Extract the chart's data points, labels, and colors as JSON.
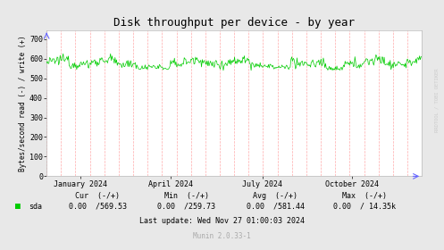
{
  "title": "Disk throughput per device - by year",
  "ylabel": "Bytes/second read (-) / write (+)",
  "background_color": "#E8E8E8",
  "plot_bg_color": "#FFFFFF",
  "line_color": "#00CC00",
  "grid_h_color": "#FFFFFF",
  "grid_v_color": "#FFAAAA",
  "axis_border_color": "#BBBBBB",
  "ylim": [
    0,
    746
  ],
  "yticks": [
    0,
    100,
    200,
    300,
    400,
    500,
    600,
    700
  ],
  "xlabel_months": [
    "January 2024",
    "April 2024",
    "July 2024",
    "October 2024"
  ],
  "legend_label": "sda",
  "legend_color": "#00CC00",
  "footer_cur": "Cur  (-/+)",
  "footer_min": "Min  (-/+)",
  "footer_avg": "Avg  (-/+)",
  "footer_max": "Max  (-/+)",
  "footer_sda_cur": "0.00  /569.53",
  "footer_sda_min": "0.00  /259.73",
  "footer_sda_avg": "0.00  /581.44",
  "footer_sda_max": "0.00  / 14.35k",
  "footer_last_update": "Last update: Wed Nov 27 01:00:03 2024",
  "footer_munin": "Munin 2.0.33-1",
  "watermark": "RRDTOOL / TOBI OETIKER",
  "mean_value": 580,
  "num_points": 500,
  "title_fontsize": 9,
  "axis_fontsize": 6,
  "footer_fontsize": 6,
  "watermark_fontsize": 4
}
